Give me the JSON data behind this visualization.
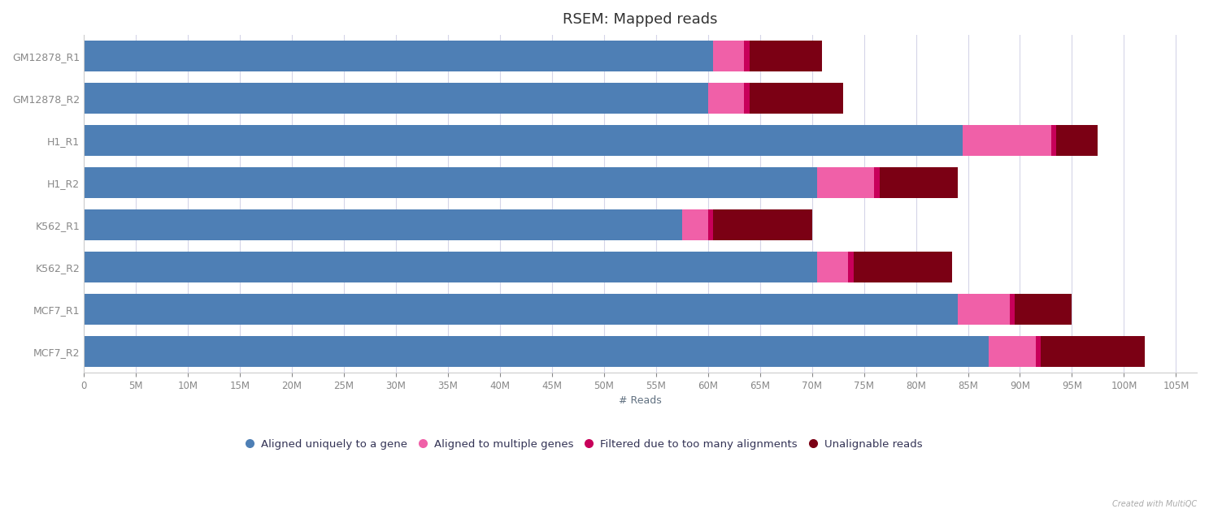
{
  "title": "RSEM: Mapped reads",
  "xlabel": "# Reads",
  "categories": [
    "GM12878_R1",
    "GM12878_R2",
    "H1_R1",
    "H1_R2",
    "K562_R1",
    "K562_R2",
    "MCF7_R1",
    "MCF7_R2"
  ],
  "aligned_unique": [
    60500000,
    60000000,
    84500000,
    70500000,
    57500000,
    70500000,
    84000000,
    87000000
  ],
  "aligned_multi": [
    3000000,
    3500000,
    8500000,
    5500000,
    2500000,
    3000000,
    5000000,
    4500000
  ],
  "filtered_too_many": [
    500000,
    500000,
    500000,
    500000,
    500000,
    500000,
    500000,
    500000
  ],
  "unalignable": [
    7000000,
    9000000,
    4000000,
    7500000,
    9500000,
    9500000,
    5500000,
    10000000
  ],
  "color_unique": "#4e7fb5",
  "color_multi": "#f060a8",
  "color_filtered": "#c8005a",
  "color_unalignable": "#7b0014",
  "legend_labels": [
    "Aligned uniquely to a gene",
    "Aligned to multiple genes",
    "Filtered due to too many alignments",
    "Unalignable reads"
  ],
  "background_color": "#ffffff",
  "grid_color": "#d5d5e8",
  "bar_height": 0.72,
  "xlim_max": 107000000,
  "xtick_max": 105000000,
  "xtick_step": 5000000,
  "title_fontsize": 13,
  "label_fontsize": 9,
  "tick_fontsize": 8.5
}
